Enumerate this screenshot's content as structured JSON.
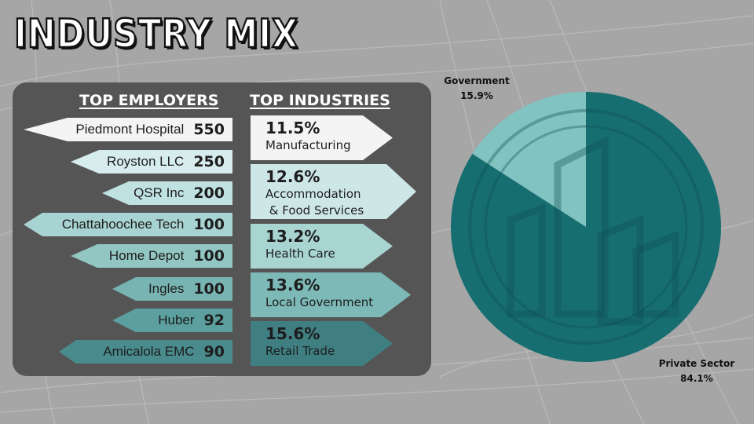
{
  "title": "INDUSTRY MIX",
  "employers": {
    "heading": "TOP EMPLOYERS",
    "items": [
      {
        "name": "Piedmont Hospital",
        "count": "550"
      },
      {
        "name": "Royston LLC",
        "count": "250"
      },
      {
        "name": "QSR Inc",
        "count": "200"
      },
      {
        "name": "Chattahoochee Tech",
        "count": "100"
      },
      {
        "name": "Home Depot",
        "count": "100"
      },
      {
        "name": "Ingles",
        "count": "100"
      },
      {
        "name": "Huber",
        "count": "92"
      },
      {
        "name": "Amicalola EMC",
        "count": "90"
      }
    ]
  },
  "industries": {
    "heading": "TOP INDUSTRIES",
    "items": [
      {
        "pct": "11.5%",
        "name": "Manufacturing"
      },
      {
        "pct": "12.6%",
        "name": "Accommodation\n & Food Services"
      },
      {
        "pct": "13.2%",
        "name": "Health Care"
      },
      {
        "pct": "13.6%",
        "name": "Local Government"
      },
      {
        "pct": "15.6%",
        "name": "Retail Trade"
      }
    ]
  },
  "chart_data": {
    "type": "pie",
    "title": "",
    "series": [
      {
        "name": "Government",
        "value": 15.9,
        "label": "15.9%"
      },
      {
        "name": "Private Sector",
        "value": 84.1,
        "label": "84.1%"
      }
    ]
  },
  "colors": {
    "background": "#a6a6a6",
    "panel": "#555555",
    "private": "#176e70",
    "government": "#81c3c0",
    "arrow_lightest": "#f4f4f4",
    "arrow_darkest": "#3f7f82"
  },
  "icons": {
    "pie_watermark": "buildings-icon"
  }
}
